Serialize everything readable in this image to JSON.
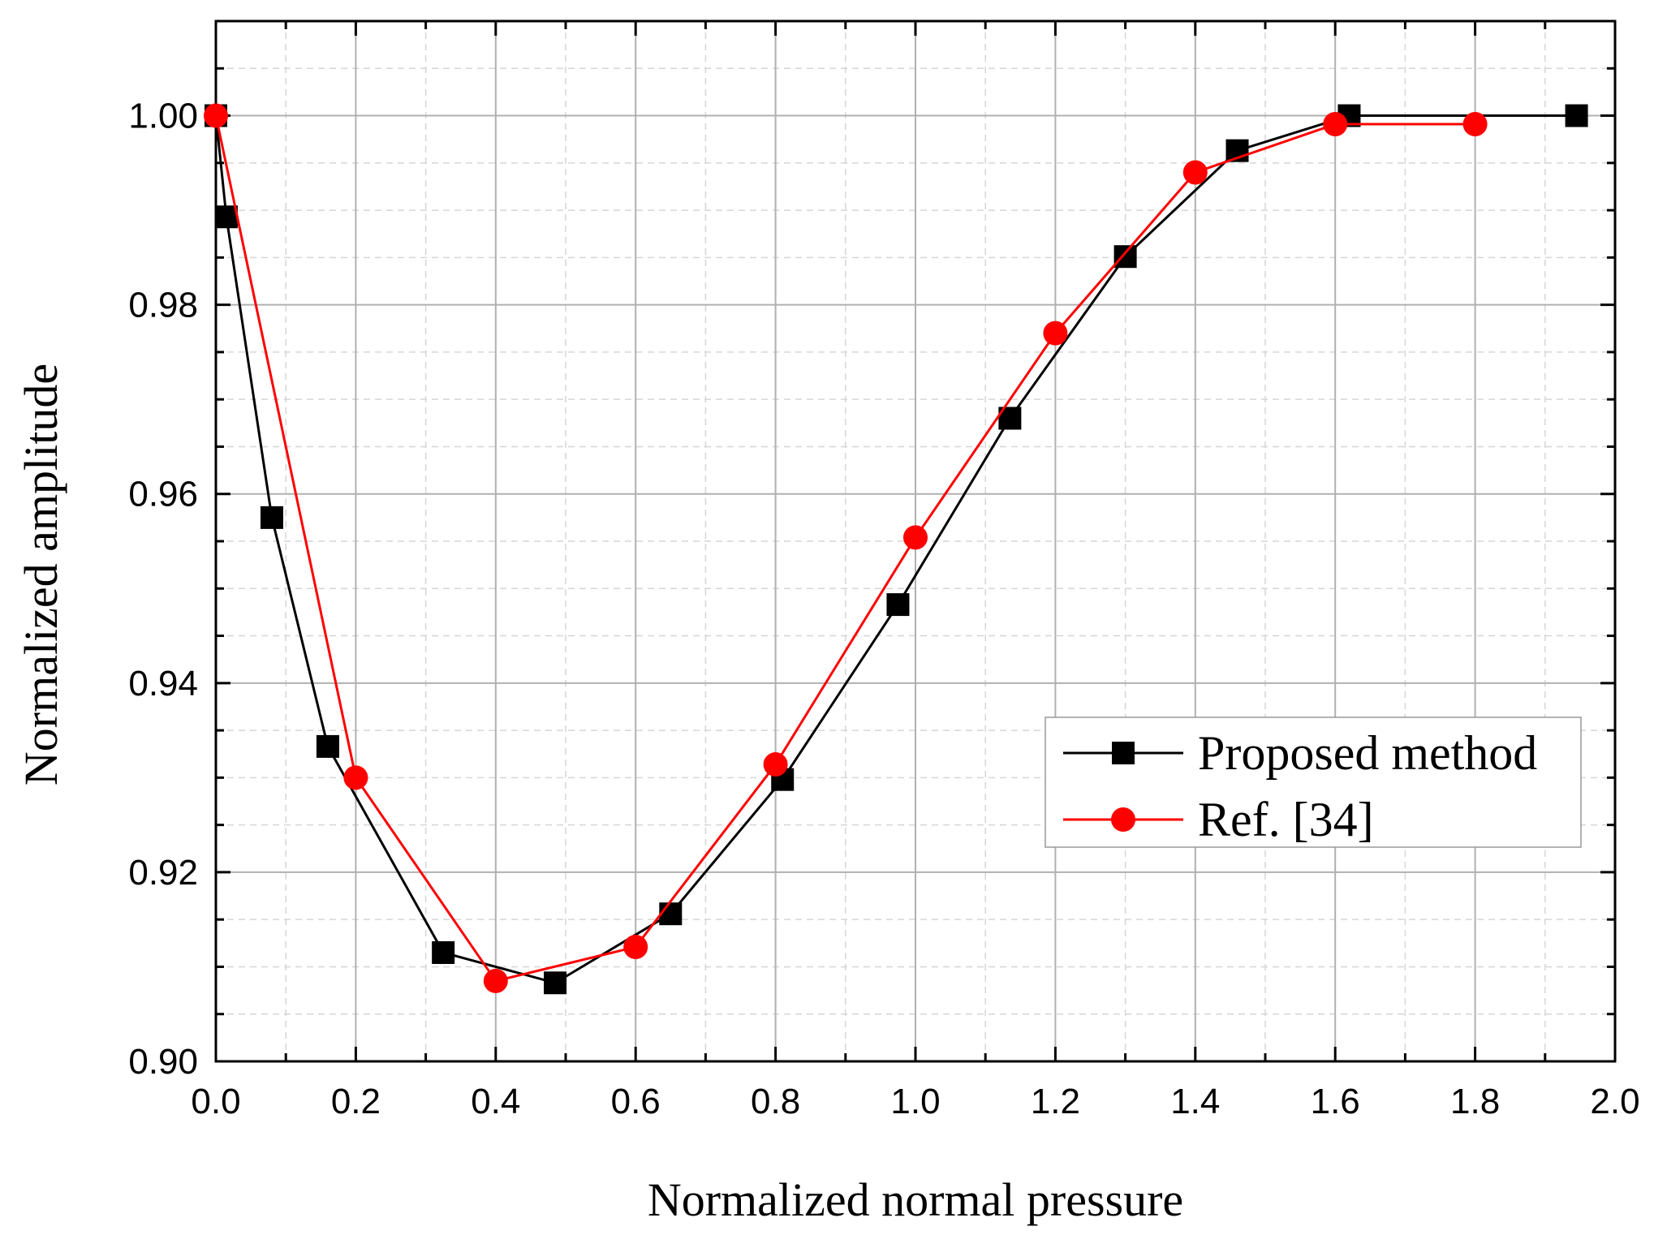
{
  "chart_data": {
    "type": "line",
    "title": "",
    "xlabel": "Normalized normal pressure",
    "ylabel": "Normalized amplitude",
    "xlim": [
      0.0,
      2.0
    ],
    "ylim": [
      0.9,
      1.01
    ],
    "x_ticks": [
      "0.0",
      "0.2",
      "0.4",
      "0.6",
      "0.8",
      "1.0",
      "1.2",
      "1.4",
      "1.6",
      "1.8",
      "2.0"
    ],
    "y_ticks": [
      "0.90",
      "0.92",
      "0.94",
      "0.96",
      "0.98",
      "1.00"
    ],
    "grid": true,
    "legend_position": "center-right",
    "series": [
      {
        "name": "Proposed method",
        "color": "#000000",
        "marker": "square",
        "x": [
          0.0,
          0.015,
          0.08,
          0.16,
          0.325,
          0.485,
          0.65,
          0.81,
          0.975,
          1.135,
          1.3,
          1.46,
          1.62,
          1.945
        ],
        "y": [
          1.0,
          0.9893,
          0.9575,
          0.9333,
          0.9115,
          0.9083,
          0.9156,
          0.9298,
          0.9483,
          0.968,
          0.9851,
          0.9963,
          1.0,
          1.0
        ]
      },
      {
        "name": "Ref. [34]",
        "color": "#ff0000",
        "marker": "circle",
        "x": [
          0.0,
          0.2,
          0.4,
          0.6,
          0.8,
          1.0,
          1.2,
          1.4,
          1.6,
          1.8
        ],
        "y": [
          1.0,
          0.93,
          0.9085,
          0.9121,
          0.9314,
          0.9554,
          0.977,
          0.994,
          0.9991,
          0.9991
        ]
      }
    ]
  }
}
